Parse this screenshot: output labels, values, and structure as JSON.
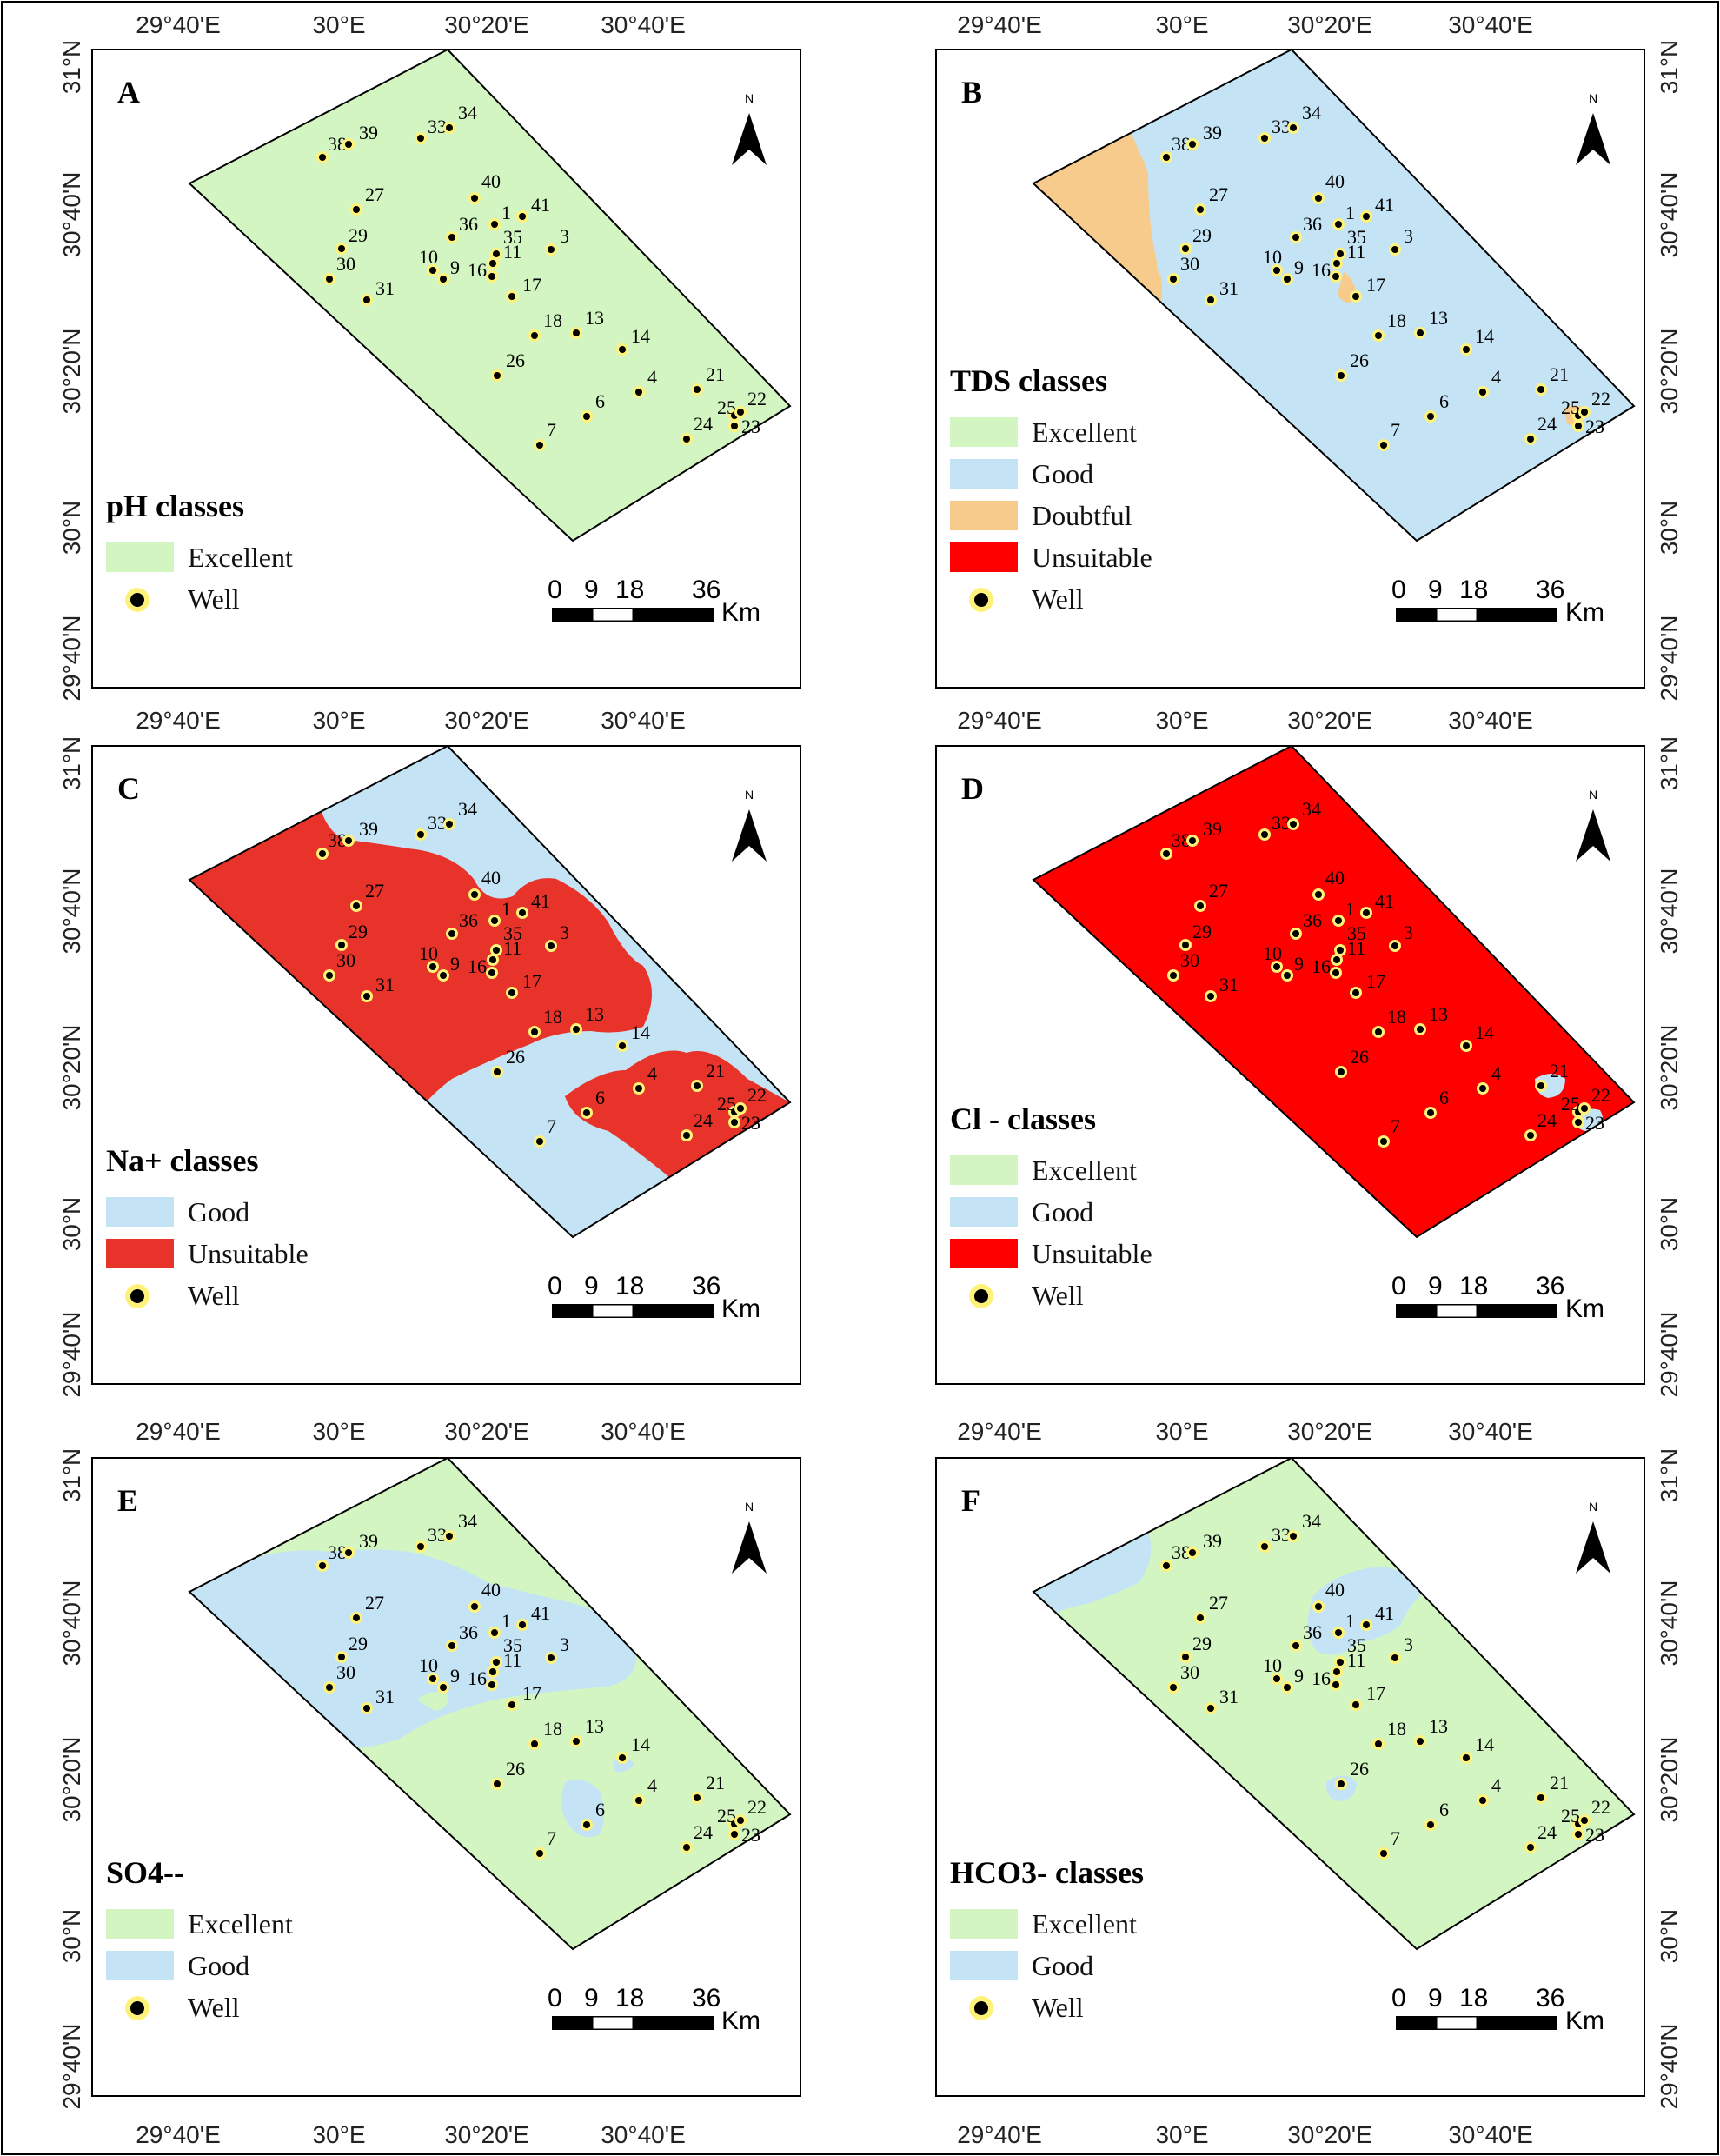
{
  "x_axis_labels": [
    "29°40'E",
    "30°E",
    "30°20'E",
    "30°40'E"
  ],
  "y_axis_labels": [
    "31°N",
    "30°40'N",
    "30°20'N",
    "30°N",
    "29°40'N"
  ],
  "scale_bar": {
    "ticks": [
      "0",
      "9",
      "18",
      "36"
    ],
    "unit": "Km"
  },
  "north_label": "N",
  "colors": {
    "excellent": "#d3f5c2",
    "good": "#c4e4f6",
    "doubtful": "#f7cb8c",
    "unsuitable_na": "#e8332a",
    "unsuitable_cl": "#ff0000",
    "well_halo": "#fff27a",
    "well_dot": "#000000"
  },
  "wells": [
    {
      "id": "38"
    },
    {
      "id": "39"
    },
    {
      "id": "33"
    },
    {
      "id": "34"
    },
    {
      "id": "27"
    },
    {
      "id": "40"
    },
    {
      "id": "29"
    },
    {
      "id": "36"
    },
    {
      "id": "1"
    },
    {
      "id": "41"
    },
    {
      "id": "30"
    },
    {
      "id": "10"
    },
    {
      "id": "9"
    },
    {
      "id": "35"
    },
    {
      "id": "3"
    },
    {
      "id": "11"
    },
    {
      "id": "31"
    },
    {
      "id": "16"
    },
    {
      "id": "17"
    },
    {
      "id": "18"
    },
    {
      "id": "13"
    },
    {
      "id": "14"
    },
    {
      "id": "26"
    },
    {
      "id": "4"
    },
    {
      "id": "21"
    },
    {
      "id": "25"
    },
    {
      "id": "22"
    },
    {
      "id": "6"
    },
    {
      "id": "24"
    },
    {
      "id": "23"
    },
    {
      "id": "7"
    }
  ],
  "panels": [
    {
      "id": "A",
      "title": "pH classes",
      "base_color": "excellent",
      "legend": [
        {
          "label": "Excellent",
          "color": "excellent",
          "kind": "swatch"
        },
        {
          "label": "Well",
          "kind": "well"
        }
      ]
    },
    {
      "id": "B",
      "title": "TDS classes",
      "base_color": "good",
      "legend": [
        {
          "label": "Excellent",
          "color": "excellent",
          "kind": "swatch"
        },
        {
          "label": "Good",
          "color": "good",
          "kind": "swatch"
        },
        {
          "label": "Doubtful",
          "color": "doubtful",
          "kind": "swatch"
        },
        {
          "label": "Unsuitable",
          "color": "unsuitable_cl",
          "kind": "swatch"
        },
        {
          "label": "Well",
          "kind": "well"
        }
      ]
    },
    {
      "id": "C",
      "title": "Na+ classes",
      "base_color": "good",
      "legend": [
        {
          "label": "Good",
          "color": "good",
          "kind": "swatch"
        },
        {
          "label": "Unsuitable",
          "color": "unsuitable_na",
          "kind": "swatch"
        },
        {
          "label": "Well",
          "kind": "well"
        }
      ]
    },
    {
      "id": "D",
      "title": "Cl - classes",
      "base_color": "unsuitable_cl",
      "legend": [
        {
          "label": "Excellent",
          "color": "excellent",
          "kind": "swatch"
        },
        {
          "label": "Good",
          "color": "good",
          "kind": "swatch"
        },
        {
          "label": "Unsuitable",
          "color": "unsuitable_cl",
          "kind": "swatch"
        },
        {
          "label": "Well",
          "kind": "well"
        }
      ]
    },
    {
      "id": "E",
      "title": "SO4--",
      "base_color": "excellent",
      "legend": [
        {
          "label": "Excellent",
          "color": "excellent",
          "kind": "swatch"
        },
        {
          "label": "Good",
          "color": "good",
          "kind": "swatch"
        },
        {
          "label": "Well",
          "kind": "well"
        }
      ]
    },
    {
      "id": "F",
      "title": "HCO3- classes",
      "base_color": "excellent",
      "legend": [
        {
          "label": "Excellent",
          "color": "excellent",
          "kind": "swatch"
        },
        {
          "label": "Good",
          "color": "good",
          "kind": "swatch"
        },
        {
          "label": "Well",
          "kind": "well"
        }
      ]
    }
  ]
}
